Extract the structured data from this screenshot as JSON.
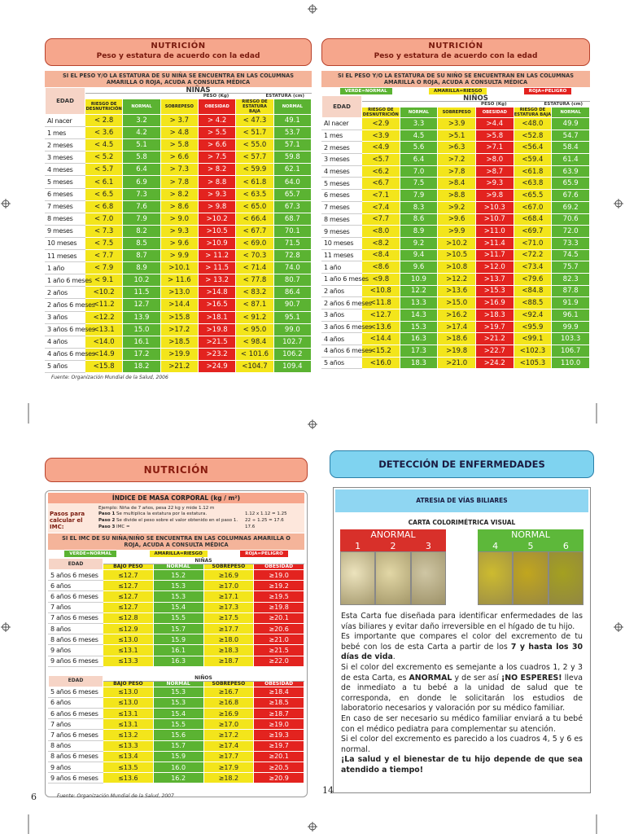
{
  "page_numbers": [
    "6",
    "14"
  ],
  "growth_panels": [
    {
      "title": "NUTRICIÓN",
      "subtitle": "Peso y estatura de acuerdo con la edad",
      "notice": "SI EL PESO Y/O LA ESTATURA DE SU NIÑA SE ENCUENTRA EN LAS COLUMNAS AMARILLA O ROJA, ACUDA A CONSULTA MÉDICA",
      "table": {
        "age_header": "EDAD",
        "group": "NIÑAS",
        "weight_header": "PESO (Kg)",
        "height_header": "ESTATURA (cm)",
        "columns": [
          "RIESGO DE DESNUTRICIÓN",
          "NORMAL",
          "SOBREPESO",
          "OBESIDAD",
          "RIESGO DE ESTATURA BAJA",
          "NORMAL"
        ],
        "rows": [
          [
            "Al nacer",
            "< 2.8",
            "3.2",
            "> 3.7",
            "> 4.2",
            "< 47.3",
            "49.1"
          ],
          [
            "1 mes",
            "< 3.6",
            "4.2",
            "> 4.8",
            "> 5.5",
            "< 51.7",
            "53.7"
          ],
          [
            "2 meses",
            "< 4.5",
            "5.1",
            "> 5.8",
            "> 6.6",
            "< 55.0",
            "57.1"
          ],
          [
            "3 meses",
            "< 5.2",
            "5.8",
            "> 6.6",
            "> 7.5",
            "< 57.7",
            "59.8"
          ],
          [
            "4 meses",
            "< 5.7",
            "6.4",
            "> 7.3",
            "> 8.2",
            "< 59.9",
            "62.1"
          ],
          [
            "5 meses",
            "< 6.1",
            "6.9",
            "> 7.8",
            "> 8.8",
            "< 61.8",
            "64.0"
          ],
          [
            "6 meses",
            "< 6.5",
            "7.3",
            "> 8.2",
            "> 9.3",
            "< 63.5",
            "65.7"
          ],
          [
            "7 meses",
            "< 6.8",
            "7.6",
            "> 8.6",
            "> 9.8",
            "< 65.0",
            "67.3"
          ],
          [
            "8 meses",
            "< 7.0",
            "7.9",
            "> 9.0",
            ">10.2",
            "< 66.4",
            "68.7"
          ],
          [
            "9 meses",
            "< 7.3",
            "8.2",
            "> 9.3",
            ">10.5",
            "< 67.7",
            "70.1"
          ],
          [
            "10 meses",
            "< 7.5",
            "8.5",
            "> 9.6",
            ">10.9",
            "< 69.0",
            "71.5"
          ],
          [
            "11 meses",
            "< 7.7",
            "8.7",
            "> 9.9",
            "> 11.2",
            "< 70.3",
            "72.8"
          ],
          [
            "1 año",
            "< 7.9",
            "8.9",
            ">10.1",
            "> 11.5",
            "< 71.4",
            "74.0"
          ],
          [
            "1 año 6 meses",
            "< 9.1",
            "10.2",
            "> 11.6",
            "> 13.2",
            "< 77.8",
            "80.7"
          ],
          [
            "2 años",
            "<10.2",
            "11.5",
            ">13.0",
            ">14.8",
            "< 83.2",
            "86.4"
          ],
          [
            "2 años 6 meses",
            "<11.2",
            "12.7",
            ">14.4",
            ">16.5",
            "< 87.1",
            "90.7"
          ],
          [
            "3 años",
            "<12.2",
            "13.9",
            ">15.8",
            ">18.1",
            "< 91.2",
            "95.1"
          ],
          [
            "3 años 6 meses",
            "<13.1",
            "15.0",
            ">17.2",
            ">19.8",
            "< 95.0",
            "99.0"
          ],
          [
            "4 años",
            "<14.0",
            "16.1",
            ">18.5",
            ">21.5",
            "< 98.4",
            "102.7"
          ],
          [
            "4 años 6 meses",
            "<14.9",
            "17.2",
            ">19.9",
            ">23.2",
            "< 101.6",
            "106.2"
          ],
          [
            "5 años",
            "<15.8",
            "18.2",
            ">21.2",
            ">24.9",
            "<104.7",
            "109.4"
          ]
        ]
      },
      "source": "Fuente: Organización Mundial de la Salud, 2006"
    },
    {
      "title": "NUTRICIÓN",
      "subtitle": "Peso y estatura de acuerdo con la edad",
      "notice": "SI EL PESO Y/O LA ESTATURA DE SU NIÑO SE ENCUENTRAN EN LAS COLUMNAS AMARILLA O ROJA, ACUDA A CONSULTA MÉDICA",
      "legend": [
        "VERDE=NORMAL",
        "AMARILLA=RIESGO",
        "ROJA=PELIGRO"
      ],
      "table": {
        "age_header": "EDAD",
        "group": "NIÑOS",
        "weight_header": "PESO (Kg)",
        "height_header": "ESTATURA (cm)",
        "columns": [
          "RIESGO DE DESNUTRICIÓN",
          "NORMAL",
          "SOBREPESO",
          "OBESIDAD",
          "RIESGO DE ESTATURA BAJA",
          "NORMAL"
        ],
        "rows": [
          [
            "Al nacer",
            "<2.9",
            "3.3",
            ">3.9",
            ">4.4",
            "<48.0",
            "49.9"
          ],
          [
            "1 mes",
            "<3.9",
            "4.5",
            ">5.1",
            ">5.8",
            "<52.8",
            "54.7"
          ],
          [
            "2 meses",
            "<4.9",
            "5.6",
            ">6.3",
            ">7.1",
            "<56.4",
            "58.4"
          ],
          [
            "3 meses",
            "<5.7",
            "6.4",
            ">7.2",
            ">8.0",
            "<59.4",
            "61.4"
          ],
          [
            "4 meses",
            "<6.2",
            "7.0",
            ">7.8",
            ">8.7",
            "<61.8",
            "63.9"
          ],
          [
            "5 meses",
            "<6.7",
            "7.5",
            ">8.4",
            ">9.3",
            "<63.8",
            "65.9"
          ],
          [
            "6 meses",
            "<7.1",
            "7.9",
            ">8.8",
            ">9.8",
            "<65.5",
            "67.6"
          ],
          [
            "7 meses",
            "<7.4",
            "8.3",
            ">9.2",
            ">10.3",
            "<67.0",
            "69.2"
          ],
          [
            "8 meses",
            "<7.7",
            "8.6",
            ">9.6",
            ">10.7",
            "<68.4",
            "70.6"
          ],
          [
            "9 meses",
            "<8.0",
            "8.9",
            ">9.9",
            ">11.0",
            "<69.7",
            "72.0"
          ],
          [
            "10 meses",
            "<8.2",
            "9.2",
            ">10.2",
            ">11.4",
            "<71.0",
            "73.3"
          ],
          [
            "11 meses",
            "<8.4",
            "9.4",
            ">10.5",
            ">11.7",
            "<72.2",
            "74.5"
          ],
          [
            "1 año",
            "<8.6",
            "9.6",
            ">10.8",
            ">12.0",
            "<73.4",
            "75.7"
          ],
          [
            "1 año 6 meses",
            "<9.8",
            "10.9",
            ">12.2",
            ">13.7",
            "<79.6",
            "82.3"
          ],
          [
            "2 años",
            "<10.8",
            "12.2",
            ">13.6",
            ">15.3",
            "<84.8",
            "87.8"
          ],
          [
            "2 años 6 meses",
            "<11.8",
            "13.3",
            ">15.0",
            ">16.9",
            "<88.5",
            "91.9"
          ],
          [
            "3 años",
            "<12.7",
            "14.3",
            ">16.2",
            ">18.3",
            "<92.4",
            "96.1"
          ],
          [
            "3 años 6 meses",
            "<13.6",
            "15.3",
            ">17.4",
            ">19.7",
            "<95.9",
            "99.9"
          ],
          [
            "4 años",
            "<14.4",
            "16.3",
            ">18.6",
            ">21.2",
            "<99.1",
            "103.3"
          ],
          [
            "4 años 6 meses",
            "<15.2",
            "17.3",
            ">19.8",
            ">22.7",
            "<102.3",
            "106.7"
          ],
          [
            "5 años",
            "<16.0",
            "18.3",
            ">21.0",
            ">24.2",
            "<105.3",
            "110.0"
          ]
        ]
      }
    }
  ],
  "imc_panel": {
    "title": "NUTRICIÓN",
    "subtitle": "ÍNDICE DE MASA CORPORAL (kg / m²)",
    "steps_label": "Pasos para calcular el IMC:",
    "example": "Ejemplo: Niña de 7 años, pesa 22 kg y mide 1.12 m",
    "steps": [
      {
        "label": "Paso 1",
        "text": "Se multiplica la estatura por la estatura.",
        "calc": "1.12 x 1.12 = 1.25"
      },
      {
        "label": "Paso 2",
        "text": "Se divide el peso sobre el valor obtenido en el paso 1.",
        "calc": "22 ÷ 1.25 = 17.6"
      },
      {
        "label": "Paso 3",
        "text": "IMC =",
        "calc": "17.6"
      }
    ],
    "notice": "SI EL IMC DE SU NIÑA/NIÑO SE ENCUENTRA EN LAS COLUMNAS AMARILLA O ROJA, ACUDA A CONSULTA MÉDICA",
    "legend": [
      "VERDE=NORMAL",
      "AMARILLA=RIESGO",
      "ROJA=PELIGRO"
    ],
    "tables": [
      {
        "age_header": "EDAD",
        "group": "NIÑAS",
        "columns": [
          "BAJO PESO",
          "NORMAL",
          "SOBREPESO",
          "OBESIDAD"
        ],
        "rows": [
          [
            "5 años 6 meses",
            "≤12.7",
            "15.2",
            "≥16.9",
            "≥19.0"
          ],
          [
            "6 años",
            "≤12.7",
            "15.3",
            "≥17.0",
            "≥19.2"
          ],
          [
            "6 años 6 meses",
            "≤12.7",
            "15.3",
            "≥17.1",
            "≥19.5"
          ],
          [
            "7 años",
            "≤12.7",
            "15.4",
            "≥17.3",
            "≥19.8"
          ],
          [
            "7 años 6 meses",
            "≤12.8",
            "15.5",
            "≥17.5",
            "≥20.1"
          ],
          [
            "8 años",
            "≤12.9",
            "15.7",
            "≥17.7",
            "≥20.6"
          ],
          [
            "8 años 6 meses",
            "≤13.0",
            "15.9",
            "≥18.0",
            "≥21.0"
          ],
          [
            "9 años",
            "≤13.1",
            "16.1",
            "≥18.3",
            "≥21.5"
          ],
          [
            "9 años 6 meses",
            "≤13.3",
            "16.3",
            "≥18.7",
            "≥22.0"
          ]
        ]
      },
      {
        "age_header": "EDAD",
        "group": "NIÑOS",
        "columns": [
          "BAJO PESO",
          "NORMAL",
          "SOBREPESO",
          "OBESIDAD"
        ],
        "rows": [
          [
            "5 años 6 meses",
            "≤13.0",
            "15.3",
            "≥16.7",
            "≥18.4"
          ],
          [
            "6 años",
            "≤13.0",
            "15.3",
            "≥16.8",
            "≥18.5"
          ],
          [
            "6 años 6 meses",
            "≤13.1",
            "15.4",
            "≥16.9",
            "≥18.7"
          ],
          [
            "7 años",
            "≤13.1",
            "15.5",
            "≥17.0",
            "≥19.0"
          ],
          [
            "7 años 6 meses",
            "≤13.2",
            "15.6",
            "≥17.2",
            "≥19.3"
          ],
          [
            "8 años",
            "≤13.3",
            "15.7",
            "≥17.4",
            "≥19.7"
          ],
          [
            "8 años 6 meses",
            "≤13.4",
            "15.9",
            "≥17.7",
            "≥20.1"
          ],
          [
            "9 años",
            "≤13.5",
            "16.0",
            "≥17.9",
            "≥20.5"
          ],
          [
            "9 años 6 meses",
            "≤13.6",
            "16.2",
            "≥18.2",
            "≥20.9"
          ]
        ]
      }
    ],
    "source": "Fuente: Organización Mundial de la Salud, 2007"
  },
  "detection_panel": {
    "title": "DETECCIÓN DE ENFERMEDADES",
    "subtitle": "ATRESIA DE VÍAS BILIARES",
    "chart_title": "CARTA COLORIMÉTRICA VISUAL",
    "groups": [
      {
        "label": "ANORMAL",
        "swatches": [
          "1",
          "2",
          "3"
        ]
      },
      {
        "label": "NORMAL",
        "swatches": [
          "4",
          "5",
          "6"
        ]
      }
    ],
    "paragraphs": [
      [
        "Esta Carta fue diseñada para identificar enfermedades de las vías biliares y evitar daño irreversible en el hígado de tu hijo."
      ],
      [
        "Es importante que compares el color del excremento de tu bebé con los de esta Carta a partir de los ",
        {
          "bold": "7 y hasta los 30 días de vida"
        },
        "."
      ],
      [
        "Si el color del excremento es semejante a los cuadros 1, 2 y 3 de esta Carta, es ",
        {
          "bold": "ANORMAL"
        },
        " y de ser así ",
        {
          "bold": "¡NO ESPERES!"
        },
        " lleva de inmediato a tu bebé a la unidad de salud que te corresponda, en donde le solicitarán los estudios de laboratorio necesarios y valoración por su médico familiar."
      ],
      [
        "En caso de ser necesario su médico familiar enviará a tu bebé con el médico pediatra para complementar su atención."
      ],
      [
        "Si el color del excremento es parecido a los cuadros 4, 5 y 6 es normal."
      ],
      [
        {
          "bold": "¡La salud y el bienestar de tu hijo depende de que sea atendido a tiempo!"
        }
      ]
    ]
  }
}
